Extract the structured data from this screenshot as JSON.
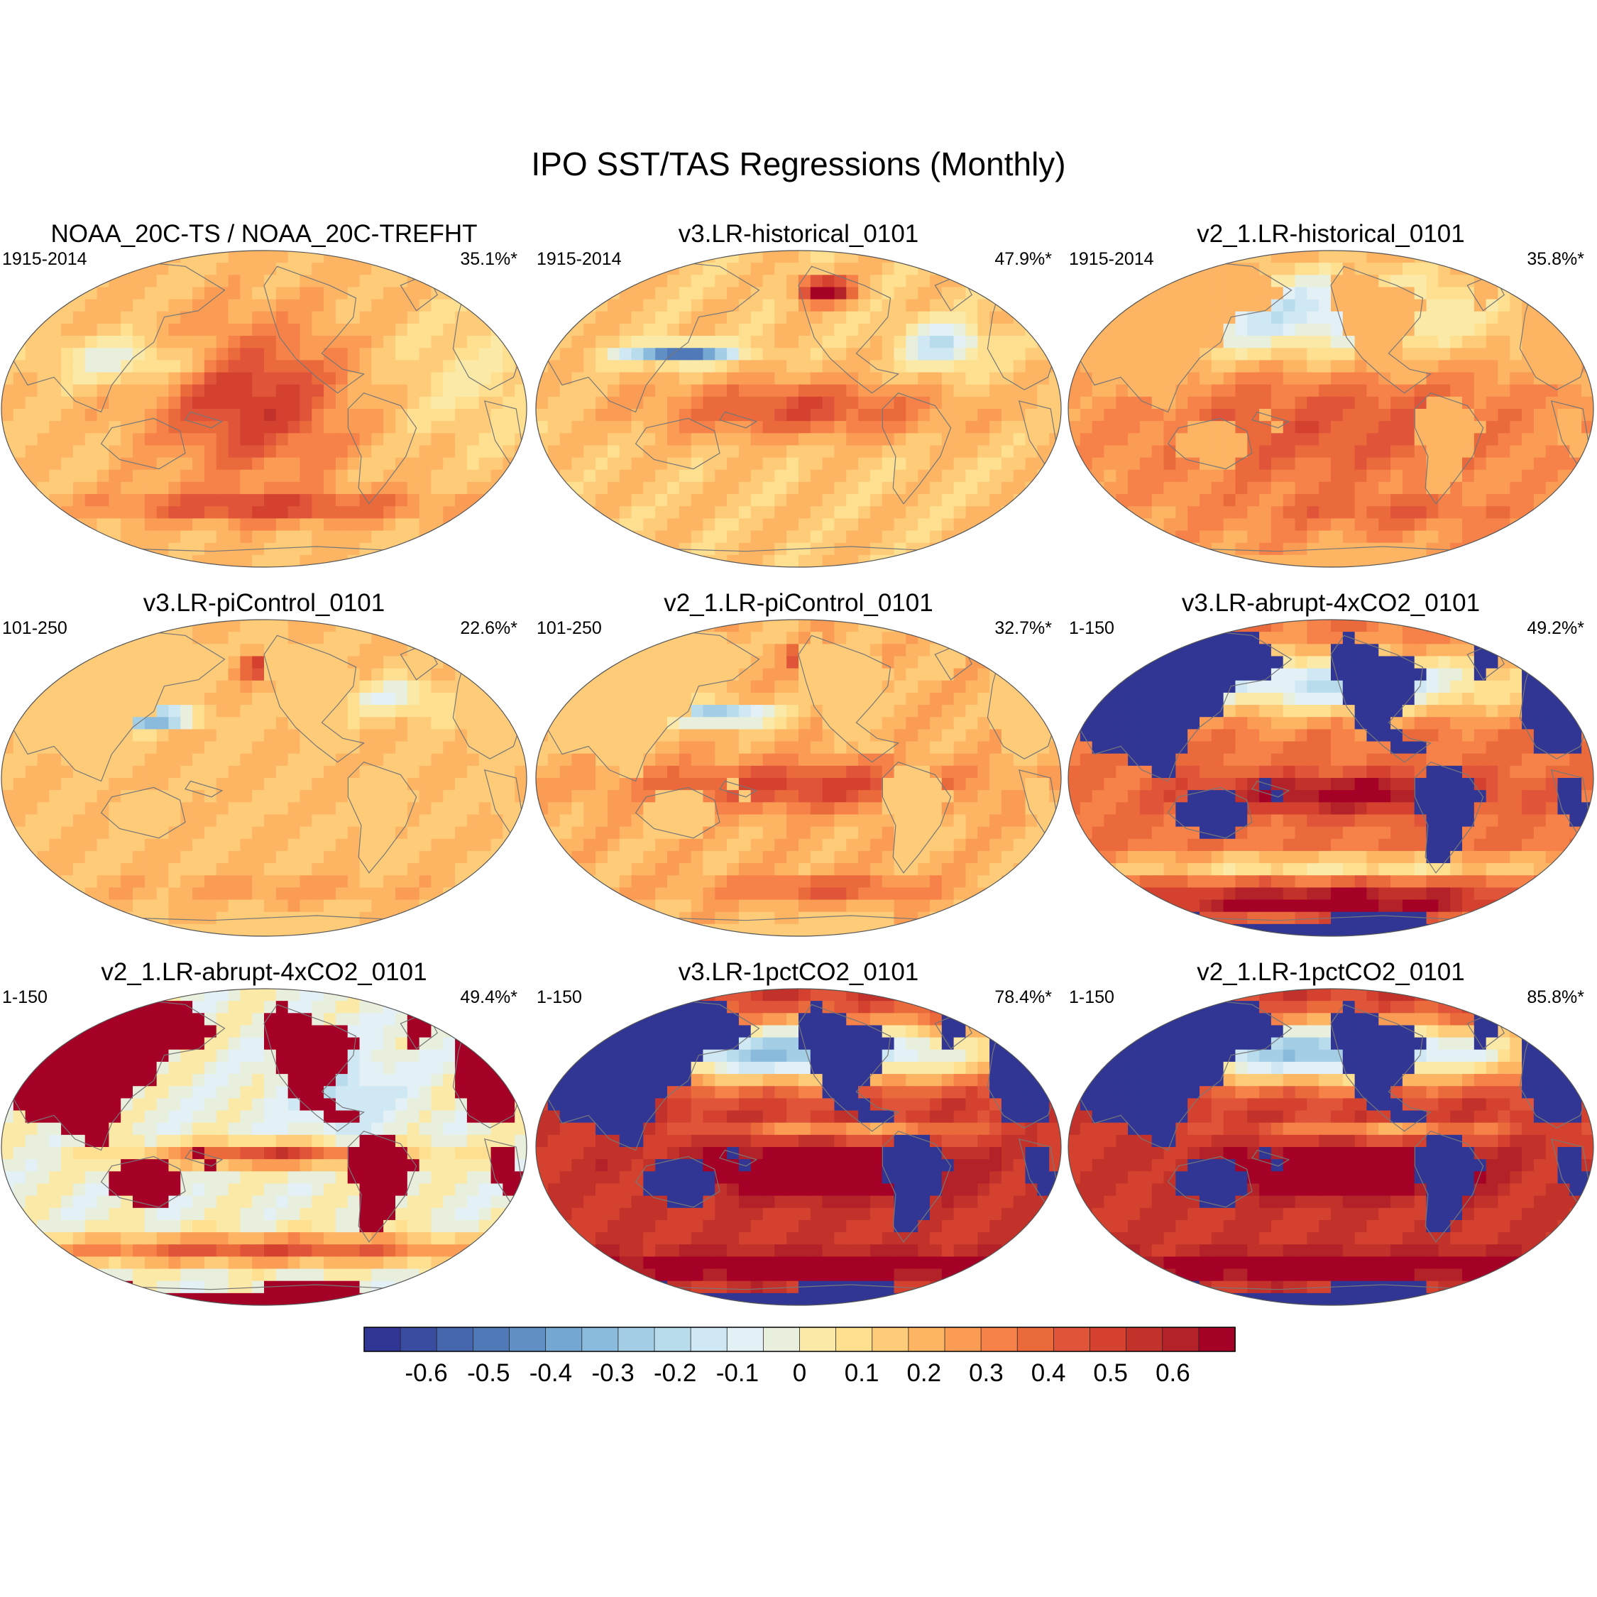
{
  "chart_data": {
    "type": "heatmap",
    "projection": "Robinson (Pacific-centred)",
    "title": "IPO SST/TAS Regressions (Monthly)",
    "panels": [
      {
        "title": "NOAA_20C-TS / NOAA_20C-TREFHT",
        "period": "1915-2014",
        "pct": "35.1%*",
        "land": 0.0,
        "pattern": "obs"
      },
      {
        "title": "v3.LR-historical_0101",
        "period": "1915-2014",
        "pct": "47.9%*",
        "land": 0.0,
        "pattern": "hist3"
      },
      {
        "title": "v2_1.LR-historical_0101",
        "period": "1915-2014",
        "pct": "35.8%*",
        "land": 0.05,
        "pattern": "hist2"
      },
      {
        "title": "v3.LR-piControl_0101",
        "period": "101-250",
        "pct": "22.6%*",
        "land": 0.03,
        "pattern": "pic3"
      },
      {
        "title": "v2_1.LR-piControl_0101",
        "period": "101-250",
        "pct": "32.7%*",
        "land": 0.02,
        "pattern": "pic2"
      },
      {
        "title": "v3.LR-abrupt-4xCO2_0101",
        "period": "1-150",
        "pct": "49.2%*",
        "land": -0.75,
        "pattern": "co2"
      },
      {
        "title": "v2_1.LR-abrupt-4xCO2_0101",
        "period": "1-150",
        "pct": "49.4%*",
        "land": 0.75,
        "pattern": "co2b"
      },
      {
        "title": "v3.LR-1pctCO2_0101",
        "period": "1-150",
        "pct": "78.4%*",
        "land": -0.75,
        "pattern": "pct"
      },
      {
        "title": "v2_1.LR-1pctCO2_0101",
        "period": "1-150",
        "pct": "85.8%*",
        "land": -0.75,
        "pattern": "pct"
      }
    ],
    "colorbar": {
      "levels": [
        -0.7,
        -0.65,
        -0.6,
        -0.55,
        -0.5,
        -0.45,
        -0.4,
        -0.35,
        -0.3,
        -0.25,
        -0.2,
        -0.15,
        -0.1,
        -0.05,
        0,
        0.05,
        0.1,
        0.15,
        0.2,
        0.25,
        0.3,
        0.35,
        0.4,
        0.45,
        0.5,
        0.55,
        0.6,
        0.65,
        0.7
      ],
      "colors": [
        "#313695",
        "#3a4ca0",
        "#4565ad",
        "#5079b8",
        "#5f8fc4",
        "#74a7d1",
        "#8abbdc",
        "#a3cee5",
        "#b9dcec",
        "#cfe8f3",
        "#e3f1f7",
        "#e8efdc",
        "#fbe9a8",
        "#fee090",
        "#fecc79",
        "#fdb564",
        "#fb9c54",
        "#f68149",
        "#ea6a3c",
        "#e0553a",
        "#d4422f",
        "#c3312b",
        "#b22228",
        "#a50026"
      ],
      "tick_labels": [
        "-0.6",
        "-0.5",
        "-0.4",
        "-0.3",
        "-0.2",
        "-0.1",
        "0",
        "0.1",
        "0.2",
        "0.3",
        "0.4",
        "0.5",
        "0.6"
      ],
      "tick_values": [
        -0.6,
        -0.5,
        -0.4,
        -0.3,
        -0.2,
        -0.1,
        0,
        0.1,
        0.2,
        0.3,
        0.4,
        0.5,
        0.6
      ]
    }
  }
}
